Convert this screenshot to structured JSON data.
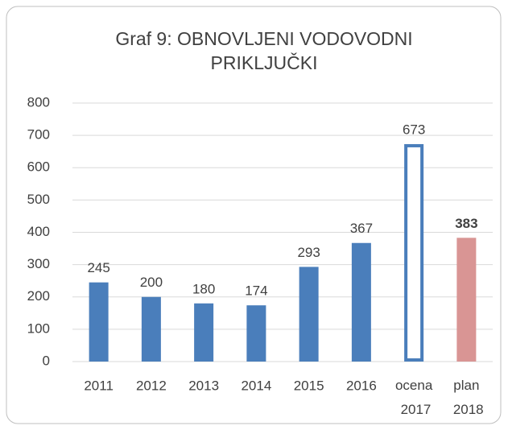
{
  "chart_data": {
    "type": "bar",
    "title": [
      "Graf 9: OBNOVLJENI VODOVODNI",
      "PRIKLJUČKI"
    ],
    "categories": [
      "2011",
      "2012",
      "2013",
      "2014",
      "2015",
      "2016",
      "ocena 2017",
      "plan 2018"
    ],
    "values": [
      245,
      200,
      180,
      174,
      293,
      367,
      673,
      383
    ],
    "bar_styles": [
      {
        "fill": "#4a7ebb",
        "stroke": "none"
      },
      {
        "fill": "#4a7ebb",
        "stroke": "none"
      },
      {
        "fill": "#4a7ebb",
        "stroke": "none"
      },
      {
        "fill": "#4a7ebb",
        "stroke": "none"
      },
      {
        "fill": "#4a7ebb",
        "stroke": "none"
      },
      {
        "fill": "#4a7ebb",
        "stroke": "none"
      },
      {
        "fill": "#ffffff",
        "stroke": "#4a7ebb"
      },
      {
        "fill": "#d99594",
        "stroke": "none"
      }
    ],
    "value_label_bold": [
      false,
      false,
      false,
      false,
      false,
      false,
      false,
      true
    ],
    "ylim": [
      0,
      800
    ],
    "yticks": [
      0,
      100,
      200,
      300,
      400,
      500,
      600,
      700,
      800
    ],
    "grid": true
  }
}
